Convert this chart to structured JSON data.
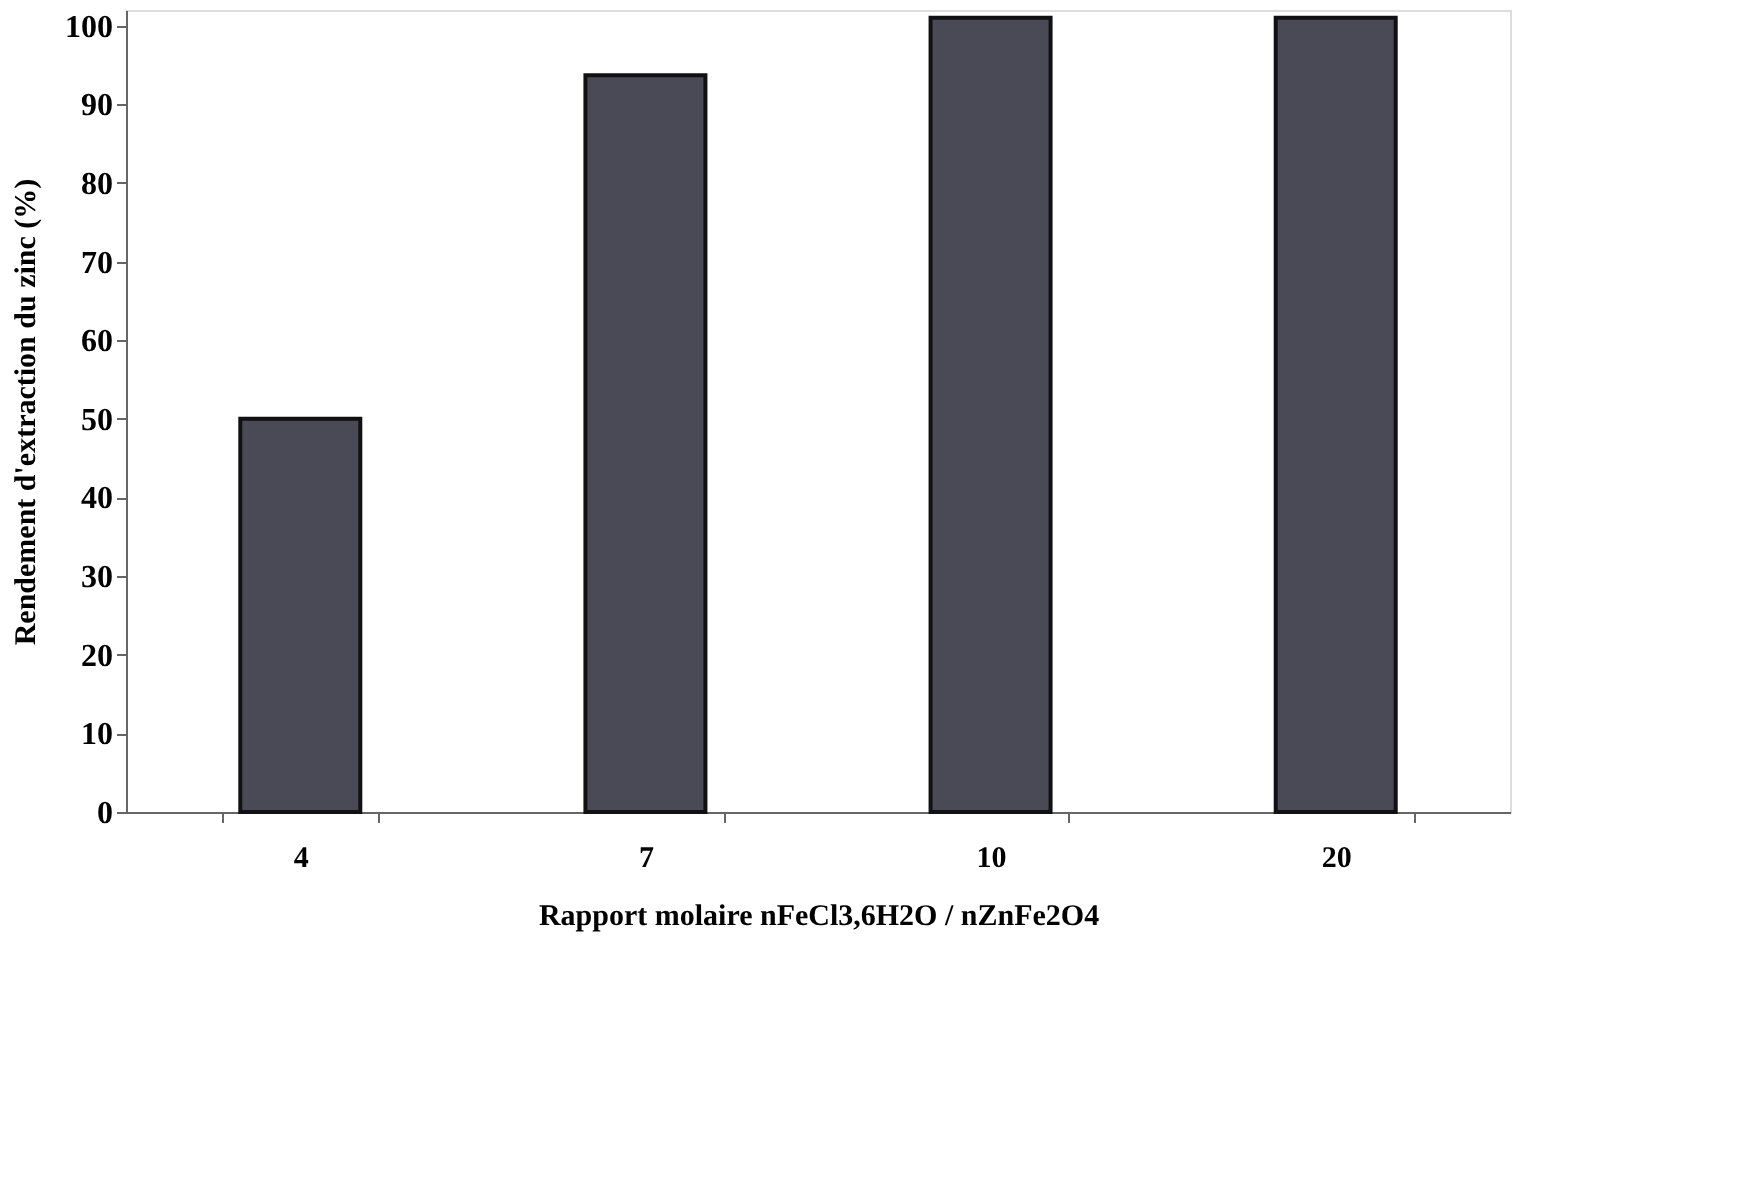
{
  "chart_data": {
    "type": "bar",
    "xlabel": "Rapport molaire nFeCl3,6H2O  / nZnFe2O4",
    "ylabel": "Rendement d'extraction du zinc (%)",
    "categories": [
      "4",
      "7",
      "10",
      "20"
    ],
    "values": [
      50,
      93.7,
      101,
      101
    ],
    "color": "#4a4a56",
    "ylim": [
      0,
      102
    ],
    "yticks": [
      0,
      10,
      20,
      30,
      40,
      50,
      60,
      70,
      80,
      90,
      100
    ],
    "grid": false
  }
}
